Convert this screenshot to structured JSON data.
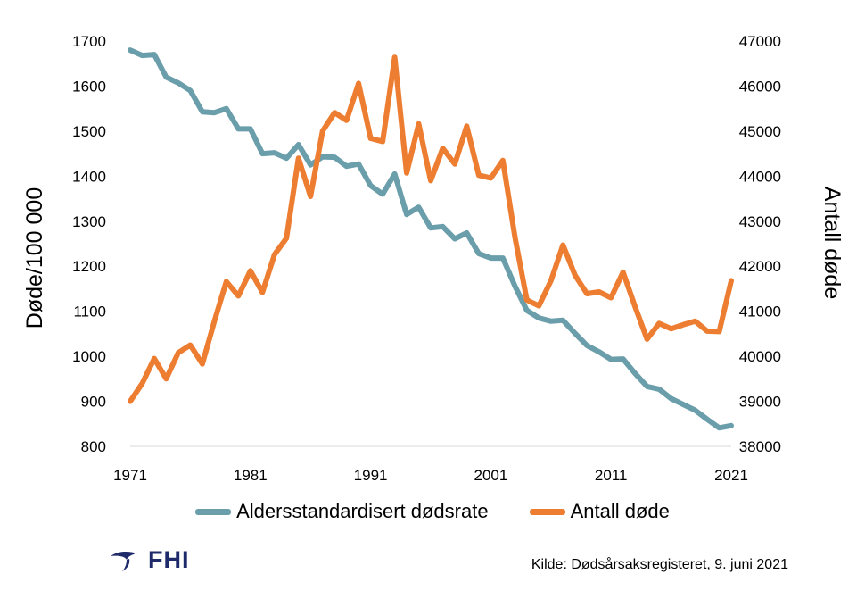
{
  "chart_data": {
    "type": "line",
    "x": [
      1971,
      1972,
      1973,
      1974,
      1975,
      1976,
      1977,
      1978,
      1979,
      1980,
      1981,
      1982,
      1983,
      1984,
      1985,
      1986,
      1987,
      1988,
      1989,
      1990,
      1991,
      1992,
      1993,
      1994,
      1995,
      1996,
      1997,
      1998,
      1999,
      2000,
      2001,
      2002,
      2003,
      2004,
      2005,
      2006,
      2007,
      2008,
      2009,
      2010,
      2011,
      2012,
      2013,
      2014,
      2015,
      2016,
      2017,
      2018,
      2019,
      2020,
      2021
    ],
    "x_ticks": [
      "1971",
      "1981",
      "1991",
      "2001",
      "2011",
      "2021"
    ],
    "xlim": [
      1971,
      2021
    ],
    "ylabel_left": "Døde/100 000",
    "ylim_left": [
      800,
      1700
    ],
    "yticks_left": [
      "800",
      "900",
      "1000",
      "1100",
      "1200",
      "1300",
      "1400",
      "1500",
      "1600",
      "1700"
    ],
    "ylabel_right": "Antall døde",
    "ylim_right": [
      38000,
      47000
    ],
    "yticks_right": [
      "38000",
      "39000",
      "40000",
      "41000",
      "42000",
      "43000",
      "44000",
      "45000",
      "46000",
      "47000"
    ],
    "grid": false,
    "legend_position": "bottom",
    "series": [
      {
        "name": "Aldersstandardisert dødsrate",
        "axis": "left",
        "color": "#6b9eab",
        "values": [
          1680,
          1668,
          1670,
          1620,
          1607,
          1590,
          1543,
          1541,
          1550,
          1505,
          1505,
          1450,
          1452,
          1440,
          1470,
          1425,
          1443,
          1442,
          1422,
          1427,
          1379,
          1360,
          1405,
          1315,
          1331,
          1285,
          1288,
          1261,
          1274,
          1228,
          1218,
          1218,
          1156,
          1102,
          1085,
          1078,
          1080,
          1051,
          1024,
          1010,
          993,
          994,
          962,
          933,
          927,
          906,
          893,
          880,
          860,
          841,
          846
        ]
      },
      {
        "name": "Antall døde",
        "axis": "right",
        "color": "#ed7d31",
        "values": [
          39000,
          39400,
          39950,
          39500,
          40080,
          40250,
          39830,
          40780,
          41660,
          41340,
          41900,
          41420,
          42260,
          42620,
          44400,
          43550,
          45000,
          45410,
          45240,
          46060,
          44840,
          44770,
          46640,
          44070,
          45160,
          43900,
          44620,
          44270,
          45110,
          44020,
          43960,
          44350,
          42650,
          41250,
          41120,
          41680,
          42470,
          41800,
          41390,
          41430,
          41300,
          41870,
          41100,
          40380,
          40730,
          40610,
          40700,
          40780,
          40560,
          40550,
          41680
        ]
      }
    ]
  },
  "legend": {
    "item1": "Aldersstandardisert dødsrate",
    "item2": "Antall døde"
  },
  "footer": {
    "logo_text": "FHI",
    "source": "Kilde: Dødsårsaksregisteret, 9. juni 2021"
  }
}
